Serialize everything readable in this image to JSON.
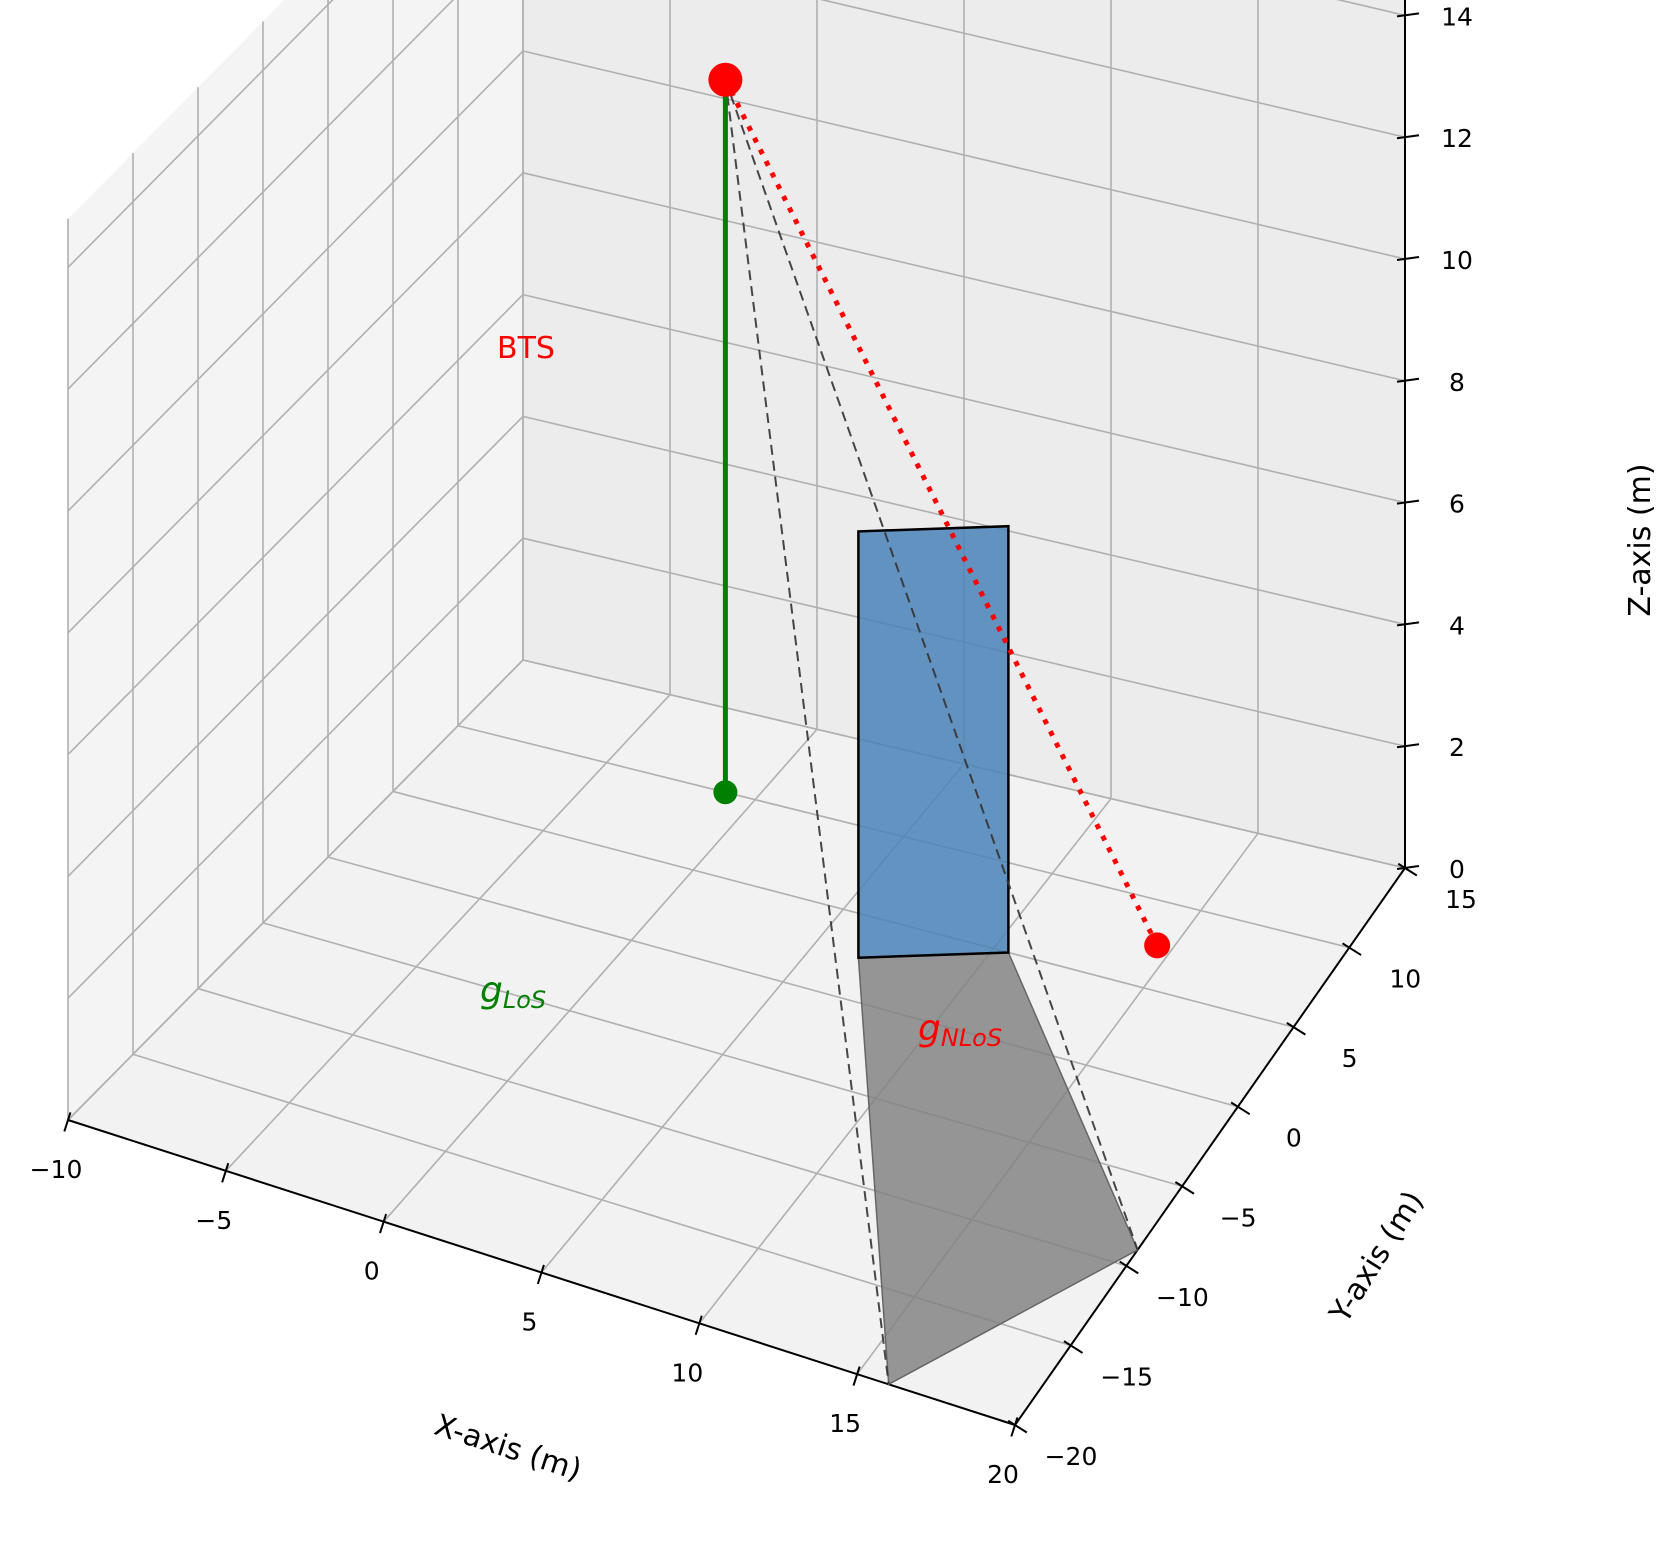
{
  "chart_data": {
    "type": "3d-scene",
    "x_axis": {
      "label": "X-axis (m)",
      "ticks": [
        "−10",
        "−5",
        "0",
        "5",
        "10",
        "15",
        "20"
      ],
      "range": [
        -10,
        20
      ]
    },
    "y_axis": {
      "label": "Y-axis (m)",
      "ticks": [
        "−20",
        "−15",
        "−10",
        "−5",
        "0",
        "5",
        "10",
        "15"
      ],
      "range": [
        -20,
        15
      ]
    },
    "z_axis": {
      "label": "Z-axis (m)",
      "ticks": [
        "0",
        "2",
        "4",
        "6",
        "8",
        "10",
        "12",
        "14"
      ],
      "range": [
        0,
        14
      ]
    },
    "grid": true,
    "points": [
      {
        "label": "BTS",
        "x": -1,
        "y": 10,
        "z": 11.7,
        "color": "#ff0000"
      },
      {
        "label_main": "g",
        "label_sub": "LoS",
        "x": -1,
        "y": 10,
        "z": 0,
        "color": "#008000"
      },
      {
        "label_main": "g",
        "label_sub": "NLoS",
        "x": 14.5,
        "y": 7.5,
        "z": 0,
        "color": "#ff0000"
      }
    ],
    "los_link": {
      "from": "BTS",
      "to": "gLoS",
      "color": "#008000",
      "style": "solid"
    },
    "nlos_link": {
      "from": "BTS",
      "to": "gNLoS",
      "color": "#ff0000",
      "style": "dotted"
    },
    "obstacle": {
      "color": "#4a82b8",
      "corners": [
        [
          6.5,
          2.5,
          0
        ],
        [
          10.5,
          5,
          0
        ],
        [
          10.5,
          5,
          7
        ],
        [
          6.5,
          2.5,
          7
        ]
      ]
    },
    "shadow": {
      "color": "#808080",
      "corners": [
        [
          6.5,
          2.5,
          0
        ],
        [
          10.5,
          5,
          0
        ],
        [
          20,
          -9,
          0
        ],
        [
          16,
          -20,
          0
        ]
      ]
    },
    "shadow_rays": {
      "color": "#333333",
      "style": "dashed"
    }
  }
}
